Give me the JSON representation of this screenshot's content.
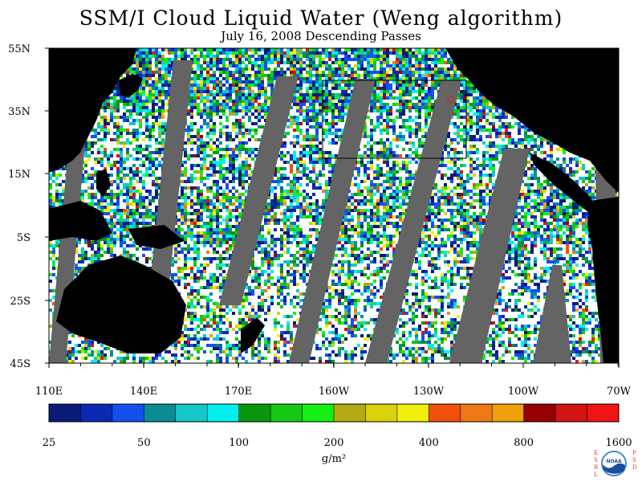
{
  "title": "SSM/I Cloud Liquid Water (Weng algorithm)",
  "subtitle": "July 16, 2008  Descending Passes",
  "lat_labels": [
    "55N",
    "35N",
    "15N",
    "5S",
    "25S",
    "45S"
  ],
  "lon_labels": [
    "110E",
    "140E",
    "170E",
    "160W",
    "130W",
    "100W",
    "70W"
  ],
  "colorbar": {
    "colors": [
      "#0a1a78",
      "#0a2ab4",
      "#1450f0",
      "#0a8c96",
      "#14c8c8",
      "#00f0f0",
      "#0a960a",
      "#14c814",
      "#14f014",
      "#b4aa14",
      "#dcd20a",
      "#f0f00a",
      "#f0500a",
      "#f07814",
      "#f0a00a",
      "#960000",
      "#d21414",
      "#f01414"
    ],
    "tick_labels": [
      "25",
      "50",
      "100",
      "200",
      "400",
      "800",
      "1600"
    ],
    "units": "g/m²"
  },
  "map": {
    "land_color": "#000000",
    "missing_color": "#646464",
    "clear_color": "#ffffff"
  },
  "logo": {
    "text": "NOAA",
    "left_letters": "ESRL",
    "right_letters": "PSD",
    "accent_color": "#d23c3c"
  }
}
